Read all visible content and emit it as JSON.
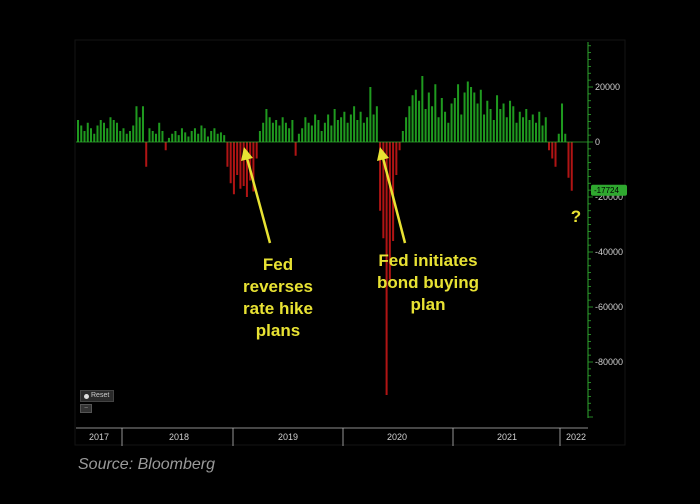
{
  "source_note": "Source: Bloomberg",
  "reset_label": "Reset",
  "mini_label": "−",
  "annotations": {
    "fed_reverses": [
      "Fed",
      "reverses",
      "rate hike",
      "plans"
    ],
    "fed_initiates": [
      "Fed initiates",
      "bond buying",
      "plan"
    ],
    "question": "?"
  },
  "colors": {
    "positive": "#1f9a1f",
    "negative": "#b01414",
    "annotation": "#e8e233",
    "axis": "#2fa82f",
    "last_value_tag": "#2fa82f"
  },
  "chart_data": {
    "type": "bar",
    "title": "",
    "xlabel": "",
    "ylabel": "",
    "ylim": [
      -100000,
      35000
    ],
    "y_ticks": [
      20000,
      0,
      -20000,
      -40000,
      -60000,
      -80000
    ],
    "y_tick_labels": [
      "20000",
      "0",
      "-20000",
      "-40000",
      "-60000",
      "-80000"
    ],
    "year_labels": [
      "2017",
      "2018",
      "2019",
      "2020",
      "2021",
      "2022"
    ],
    "last_value": -17724,
    "last_value_label": "-17724",
    "series": [
      {
        "values": [
          8000,
          6000,
          4000,
          7000,
          5000,
          3000,
          6000,
          8000,
          7000,
          5000,
          9000,
          8000,
          7000,
          4000,
          5000,
          3000,
          4000,
          6000,
          13000,
          9000,
          13000,
          -9000,
          5000,
          4000,
          3000,
          7000,
          4000,
          -3000,
          1500,
          3000,
          4000,
          2500,
          5000,
          3500,
          2000,
          4000,
          5000,
          3000,
          6000,
          5000,
          2000,
          4000,
          5000,
          3000,
          3500,
          2500,
          -9000,
          -15000,
          -19000,
          -12000,
          -17000,
          -16000,
          -20000,
          -14000,
          -18000,
          -6000,
          4000,
          7000,
          12000,
          9000,
          7000,
          8000,
          6000,
          9000,
          7000,
          5000,
          8000,
          -5000,
          3000,
          5000,
          9000,
          7000,
          6000,
          10000,
          8000,
          4000,
          7000,
          10000,
          6000,
          12000,
          8000,
          9000,
          11000,
          7000,
          10000,
          13000,
          8000,
          11000,
          7000,
          9000,
          20000,
          10000,
          13000,
          -25000,
          -35000,
          -92000,
          -50000,
          -36000,
          -12000,
          -3000,
          4000,
          9000,
          13000,
          17000,
          19000,
          15000,
          24000,
          12000,
          18000,
          13000,
          21000,
          9000,
          16000,
          11000,
          7000,
          14000,
          16000,
          21000,
          10000,
          18000,
          22000,
          20000,
          18000,
          14000,
          19000,
          10000,
          15000,
          12000,
          8000,
          17000,
          12000,
          14000,
          9000,
          15000,
          13000,
          7000,
          11000,
          9000,
          12000,
          8000,
          10000,
          7000,
          11000,
          6000,
          9000,
          -3000,
          -6000,
          -9000,
          3000,
          14000,
          3000,
          -13000,
          -17724
        ]
      }
    ]
  }
}
